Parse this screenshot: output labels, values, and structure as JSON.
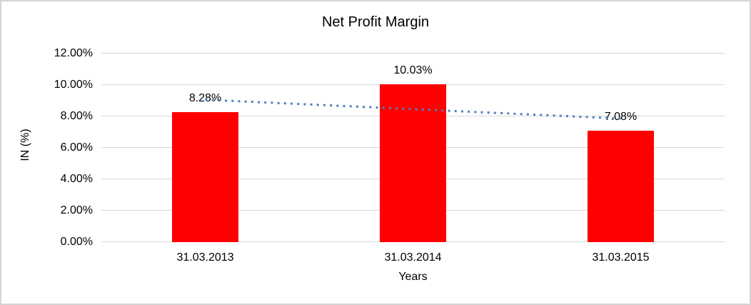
{
  "chart_data": {
    "type": "bar",
    "title": "Net Profit Margin",
    "xlabel": "Years",
    "ylabel": "IN (%)",
    "categories": [
      "31.03.2013",
      "31.03.2014",
      "31.03.2015"
    ],
    "values": [
      8.28,
      10.03,
      7.08
    ],
    "data_labels": [
      "8.28%",
      "10.03%",
      "7.08%"
    ],
    "ylim": [
      0,
      12
    ],
    "ytick_step": 2,
    "ytick_labels": [
      "0.00%",
      "2.00%",
      "4.00%",
      "6.00%",
      "8.00%",
      "10.00%",
      "12.00%"
    ],
    "grid": true,
    "legend": "none",
    "bar_color": "#ff0000",
    "gridline_color": "#d9d9d9",
    "trendline": {
      "type": "linear",
      "style": "dotted",
      "color": "#4f81bd"
    }
  }
}
